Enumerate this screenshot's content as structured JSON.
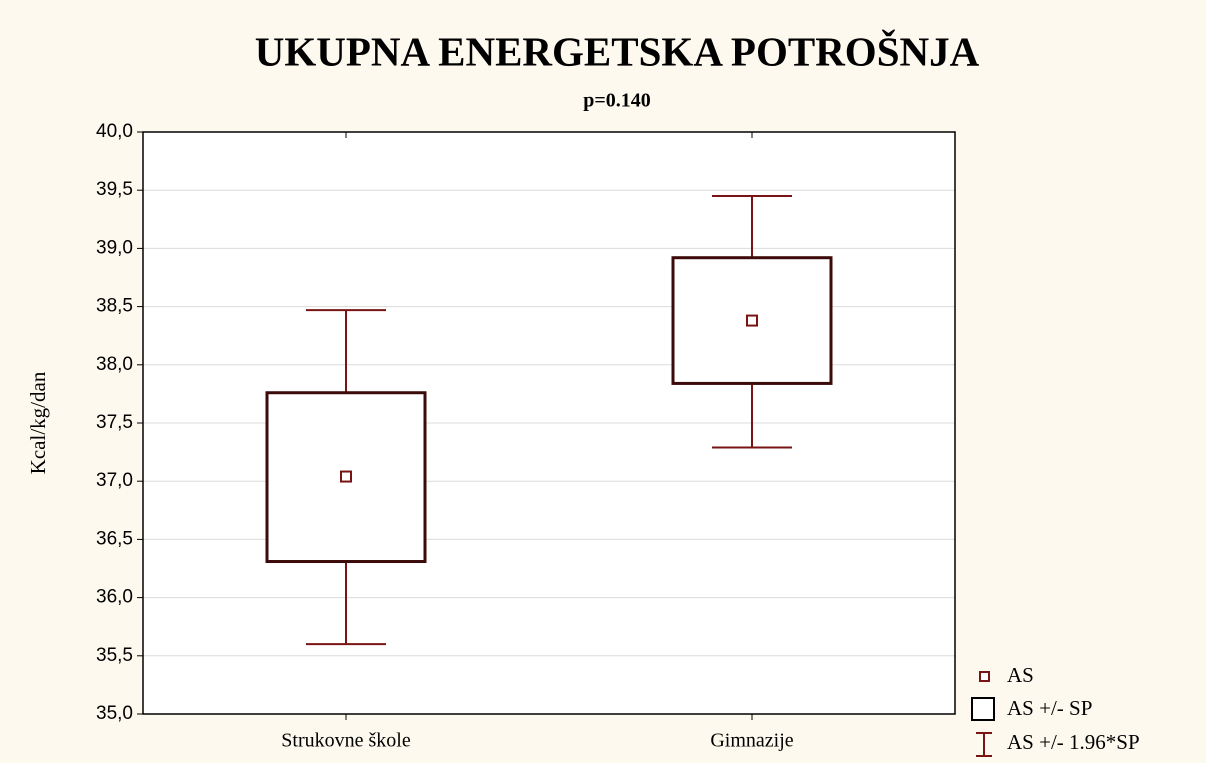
{
  "chart_data": {
    "type": "box",
    "title": "UKUPNA ENERGETSKA POTROŠNJA",
    "subtitle": "p=0.140",
    "ylabel": "Kcal/kg/dan",
    "categories": [
      "Strukovne škole",
      "Gimnazije"
    ],
    "boxes": [
      {
        "mean": 37.04,
        "se_low": 36.31,
        "se_high": 37.76,
        "ci_low": 35.6,
        "ci_high": 38.47
      },
      {
        "mean": 38.38,
        "se_low": 37.84,
        "se_high": 38.92,
        "ci_low": 37.29,
        "ci_high": 39.45
      }
    ],
    "legend": [
      "AS",
      "AS +/- SP",
      "AS +/- 1.96*SP"
    ],
    "color": "#7a1414",
    "box_color": "#3d0a0a",
    "ylim": [
      35,
      40
    ],
    "yticks": [
      {
        "value": 35,
        "label": "35,0"
      },
      {
        "value": 35.5,
        "label": "35,5"
      },
      {
        "value": 36,
        "label": "36,0"
      },
      {
        "value": 36.5,
        "label": "36,5"
      },
      {
        "value": 37,
        "label": "37,0"
      },
      {
        "value": 37.5,
        "label": "37,5"
      },
      {
        "value": 38,
        "label": "38,0"
      },
      {
        "value": 38.5,
        "label": "38,5"
      },
      {
        "value": 39,
        "label": "39,0"
      },
      {
        "value": 39.5,
        "label": "39,5"
      },
      {
        "value": 40,
        "label": "40,0"
      }
    ],
    "grid": true
  }
}
